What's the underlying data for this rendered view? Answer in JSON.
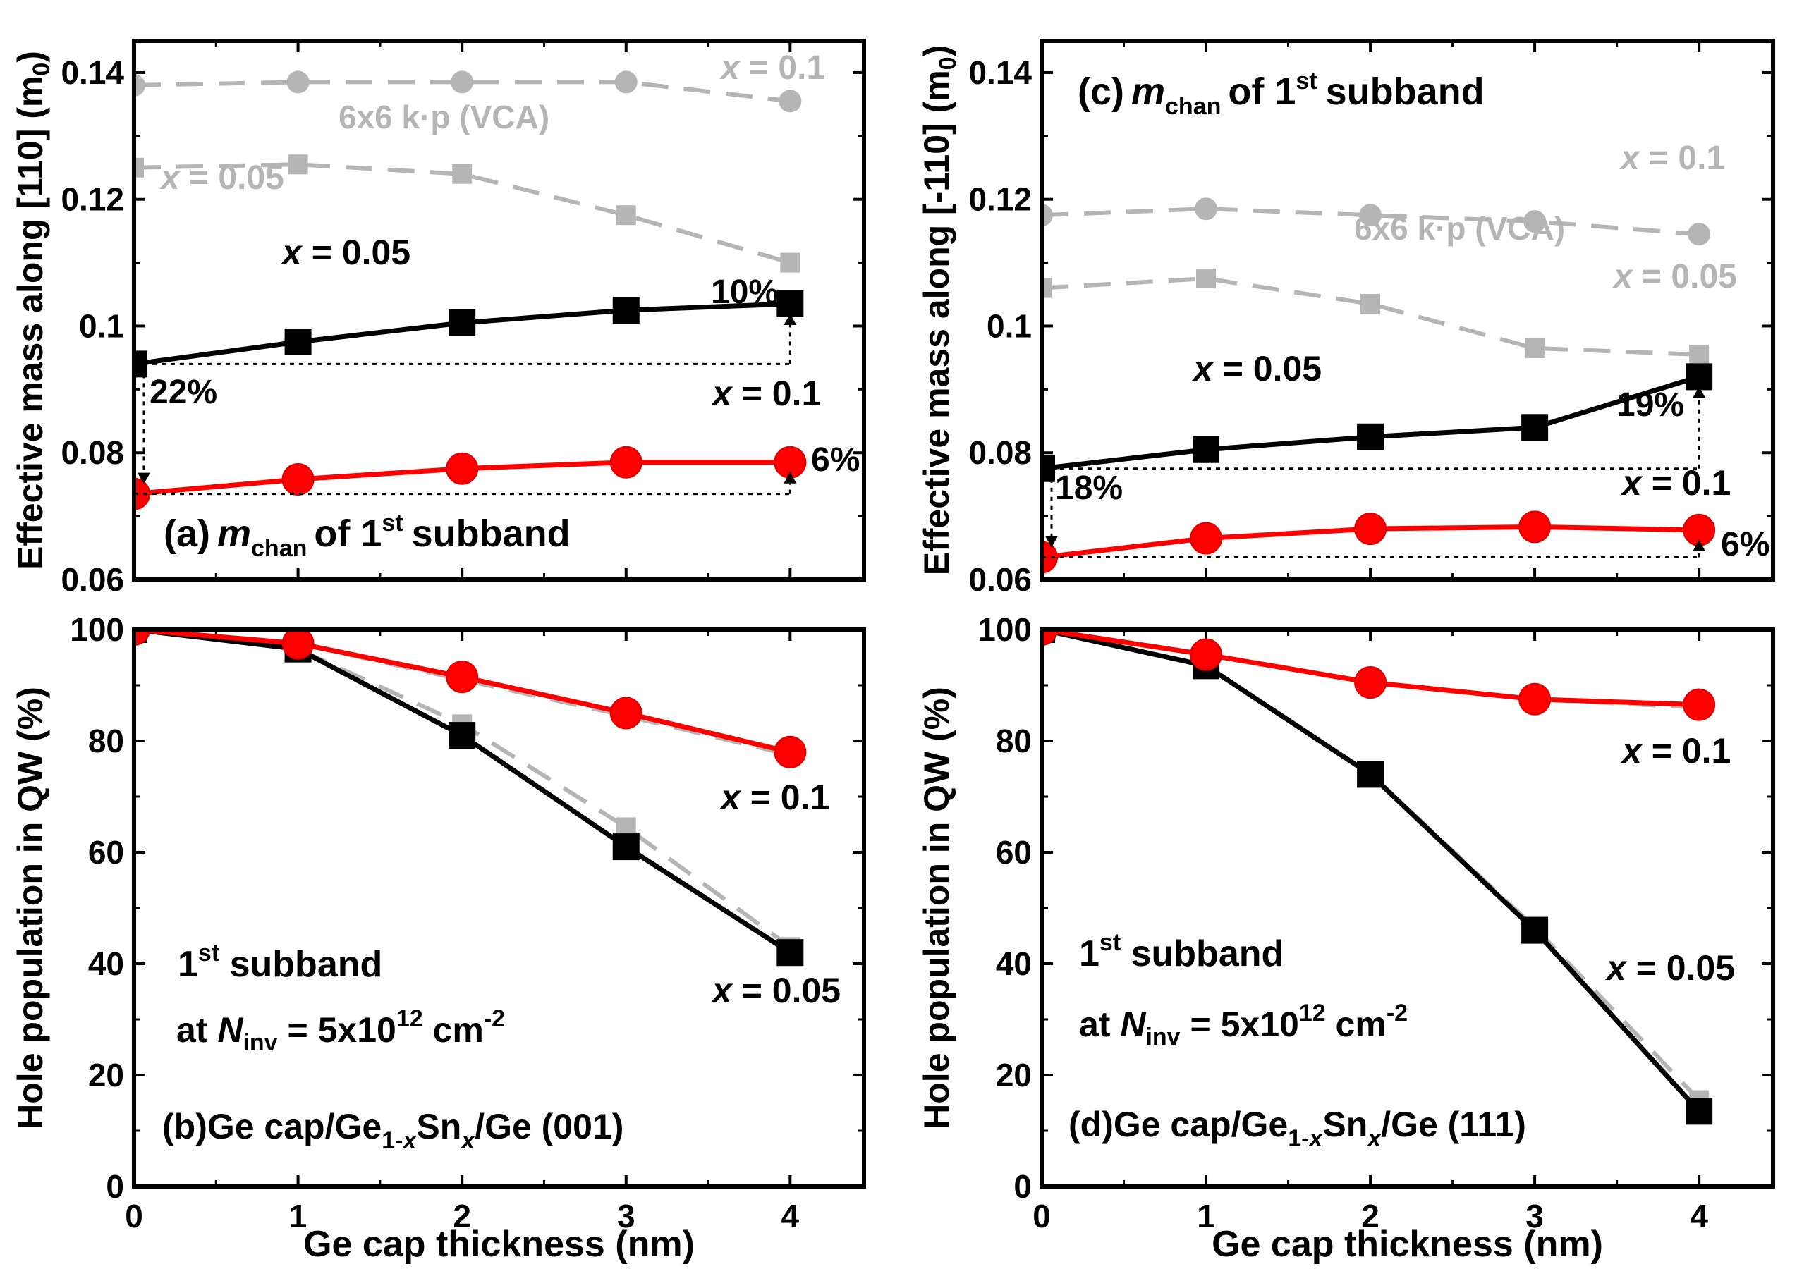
{
  "colors": {
    "black_series": "#000000",
    "red_series": "#ff0000",
    "red_marker_stroke": "#e00000",
    "gray_series": "#b5b5b5",
    "dotted_guide": "#000000"
  },
  "chart_data": [
    {
      "id": "a",
      "type": "line",
      "panel_label": "(a)",
      "panel_text_parts": [
        "m",
        "chan",
        "of 1",
        "st",
        "subband"
      ],
      "ylabel": "Effective mass along [110] (m0)",
      "ylabel_parts": [
        "Effective mass along [110] (m",
        "0",
        ")"
      ],
      "xlabel": "",
      "ylim": [
        0.06,
        0.145
      ],
      "xlim": [
        0,
        4.45
      ],
      "yticks": [
        0.06,
        0.08,
        0.1,
        0.12,
        0.14
      ],
      "ytick_labels": [
        "0.06",
        "0.08",
        "0.1",
        "0.12",
        "0.14"
      ],
      "xticks": [
        0,
        1,
        2,
        3,
        4
      ],
      "xtick_labels": [],
      "x": [
        0,
        1,
        2,
        3,
        4
      ],
      "series": [
        {
          "name": "x = 0.05",
          "style": "black-square",
          "values": [
            0.094,
            0.0975,
            0.1005,
            0.1025,
            0.1035
          ]
        },
        {
          "name": "x = 0.1",
          "style": "red-circle",
          "values": [
            0.0735,
            0.0758,
            0.0775,
            0.0785,
            0.0785
          ]
        },
        {
          "name": "6x6 k·p (VCA) x = 0.05",
          "style": "gray-square-dashed",
          "values": [
            0.125,
            0.1255,
            0.124,
            0.1175,
            0.11
          ]
        },
        {
          "name": "6x6 k·p (VCA) x = 0.1",
          "style": "gray-circle-dashed",
          "values": [
            0.138,
            0.1385,
            0.1385,
            0.1385,
            0.1355
          ]
        }
      ],
      "labels": {
        "black_var": "x",
        "black_eq": " = 0.05",
        "red_var": "x",
        "red_eq": " = 0.1",
        "gray1_var": "x",
        "gray1_eq": " = 0.1",
        "gray2_var": "x",
        "gray2_eq": " = 0.05",
        "kp": "6x6 k·p (VCA)",
        "pct_black": "10%",
        "pct_gap": "22%",
        "pct_red": "6%"
      }
    },
    {
      "id": "b",
      "type": "line",
      "panel_label": "(b)",
      "panel_text_parts": [
        "Ge cap/Ge",
        "1-",
        "x",
        "Sn",
        "x",
        "/Ge (001)"
      ],
      "ylabel": "Hole population in QW (%)",
      "xlabel": "Ge cap thickness (nm)",
      "ylim": [
        0,
        100
      ],
      "xlim": [
        0,
        4.45
      ],
      "yticks": [
        0,
        20,
        40,
        60,
        80,
        100
      ],
      "ytick_labels": [
        "0",
        "20",
        "40",
        "60",
        "80",
        "100"
      ],
      "xticks": [
        0,
        1,
        2,
        3,
        4
      ],
      "xtick_labels": [
        "0",
        "1",
        "2",
        "3",
        "4"
      ],
      "x": [
        0,
        1,
        2,
        3,
        4
      ],
      "series": [
        {
          "name": "x = 0.05",
          "style": "black-square",
          "values": [
            100,
            96.5,
            81,
            61,
            42
          ]
        },
        {
          "name": "x = 0.1",
          "style": "red-circle",
          "values": [
            100,
            97.5,
            91.5,
            85,
            78
          ]
        },
        {
          "name": "6x6 k·p (VCA) x = 0.05",
          "style": "gray-square-dashed",
          "values": [
            100,
            96.5,
            83,
            64.5,
            43
          ]
        },
        {
          "name": "6x6 k·p (VCA) x = 0.1",
          "style": "gray-circle-dashed",
          "values": [
            100,
            97.5,
            91,
            84.5,
            77.5
          ]
        }
      ],
      "labels": {
        "black_var": "x",
        "black_eq": " = 0.05",
        "red_var": "x",
        "red_eq": " = 0.1",
        "subband_1": "1",
        "subband_sup": "st",
        "subband_rest": " subband",
        "ninv_at": "at ",
        "ninv_N": "N",
        "ninv_sub": "inv",
        "ninv_eq": " = 5x10",
        "ninv_exp": "12",
        "ninv_unit": " cm",
        "ninv_unit_exp": "-2"
      }
    },
    {
      "id": "c",
      "type": "line",
      "panel_label": "(c)",
      "panel_text_parts": [
        "m",
        "chan",
        "of 1",
        "st",
        "subband"
      ],
      "ylabel": "Effective mass along [-110] (m0)",
      "ylabel_parts": [
        "Effective mass along [-110] (m",
        "0",
        ")"
      ],
      "xlabel": "",
      "ylim": [
        0.06,
        0.145
      ],
      "xlim": [
        0,
        4.45
      ],
      "yticks": [
        0.06,
        0.08,
        0.1,
        0.12,
        0.14
      ],
      "ytick_labels": [
        "0.06",
        "0.08",
        "0.1",
        "0.12",
        "0.14"
      ],
      "xticks": [
        0,
        1,
        2,
        3,
        4
      ],
      "xtick_labels": [],
      "x": [
        0,
        1,
        2,
        3,
        4
      ],
      "series": [
        {
          "name": "x = 0.05",
          "style": "black-square",
          "values": [
            0.0775,
            0.0805,
            0.0825,
            0.084,
            0.092
          ]
        },
        {
          "name": "x = 0.1",
          "style": "red-circle",
          "values": [
            0.0635,
            0.0665,
            0.068,
            0.0683,
            0.0678
          ]
        },
        {
          "name": "6x6 k·p (VCA) x = 0.05",
          "style": "gray-square-dashed",
          "values": [
            0.106,
            0.1075,
            0.1035,
            0.0965,
            0.0955
          ]
        },
        {
          "name": "6x6 k·p (VCA) x = 0.1",
          "style": "gray-circle-dashed",
          "values": [
            0.1175,
            0.1185,
            0.1175,
            0.1165,
            0.1145
          ]
        }
      ],
      "labels": {
        "black_var": "x",
        "black_eq": " = 0.05",
        "red_var": "x",
        "red_eq": " = 0.1",
        "gray1_var": "x",
        "gray1_eq": " = 0.1",
        "gray2_var": "x",
        "gray2_eq": " = 0.05",
        "kp": "6x6 k·p (VCA)",
        "pct_black": "19%",
        "pct_gap": "18%",
        "pct_red": "6%"
      }
    },
    {
      "id": "d",
      "type": "line",
      "panel_label": "(d)",
      "panel_text_parts": [
        "Ge cap/Ge",
        "1-",
        "x",
        "Sn",
        "x",
        "/Ge (111)"
      ],
      "ylabel": "Hole population in QW (%)",
      "xlabel": "Ge cap thickness (nm)",
      "ylim": [
        0,
        100
      ],
      "xlim": [
        0,
        4.45
      ],
      "yticks": [
        0,
        20,
        40,
        60,
        80,
        100
      ],
      "ytick_labels": [
        "0",
        "20",
        "40",
        "60",
        "80",
        "100"
      ],
      "xticks": [
        0,
        1,
        2,
        3,
        4
      ],
      "xtick_labels": [
        "0",
        "1",
        "2",
        "3",
        "4"
      ],
      "x": [
        0,
        1,
        2,
        3,
        4
      ],
      "series": [
        {
          "name": "x = 0.05",
          "style": "black-square",
          "values": [
            100,
            93.5,
            74,
            46,
            13.5
          ]
        },
        {
          "name": "x = 0.1",
          "style": "red-circle",
          "values": [
            100,
            95.5,
            90.5,
            87.5,
            86.5
          ]
        },
        {
          "name": "6x6 k·p (VCA) x = 0.05",
          "style": "gray-square-dashed",
          "values": [
            100,
            93.5,
            74,
            46.5,
            15.5
          ]
        },
        {
          "name": "6x6 k·p (VCA) x = 0.1",
          "style": "gray-circle-dashed",
          "values": [
            100,
            95.5,
            90.5,
            87.5,
            86
          ]
        }
      ],
      "labels": {
        "black_var": "x",
        "black_eq": " = 0.05",
        "red_var": "x",
        "red_eq": " = 0.1",
        "subband_1": "1",
        "subband_sup": "st",
        "subband_rest": " subband",
        "ninv_at": "at ",
        "ninv_N": "N",
        "ninv_sub": "inv",
        "ninv_eq": " = 5x10",
        "ninv_exp": "12",
        "ninv_unit": " cm",
        "ninv_unit_exp": "-2"
      }
    }
  ]
}
